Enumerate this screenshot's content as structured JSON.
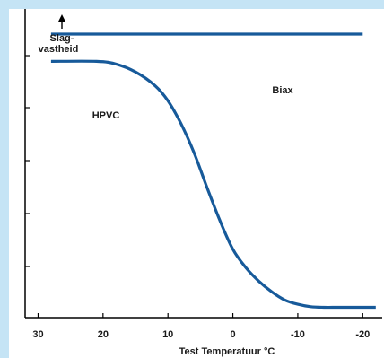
{
  "chart_data": {
    "type": "line",
    "title": "",
    "ylabel_line1": "Slag-",
    "ylabel_line2": "vastheid",
    "xlabel": "Test Temperatuur °C",
    "x_reversed": true,
    "xlim": [
      32,
      -23
    ],
    "ylim": [
      0,
      1
    ],
    "x_ticks": [
      30,
      20,
      10,
      0,
      -10,
      -20
    ],
    "x_tick_labels": [
      "30",
      "20",
      "10",
      "0",
      "-10",
      "-20"
    ],
    "series": [
      {
        "name": "Biax",
        "color": "#175a9a",
        "x": [
          28,
          20,
          10,
          0,
          -10,
          -20
        ],
        "y": [
          0.935,
          0.935,
          0.935,
          0.935,
          0.935,
          0.935
        ]
      },
      {
        "name": "HPVC",
        "color": "#175a9a",
        "x": [
          28,
          21,
          18,
          15,
          12,
          10,
          8,
          6,
          4,
          2,
          0,
          -2,
          -4,
          -6,
          -8,
          -10,
          -12,
          -14,
          -16,
          -18,
          -20,
          -22
        ],
        "y": [
          0.845,
          0.845,
          0.836,
          0.81,
          0.765,
          0.715,
          0.64,
          0.545,
          0.43,
          0.32,
          0.225,
          0.165,
          0.12,
          0.085,
          0.058,
          0.044,
          0.036,
          0.034,
          0.034,
          0.034,
          0.034,
          0.034
        ]
      }
    ],
    "annotations": [
      "Biax",
      "HPVC"
    ]
  }
}
